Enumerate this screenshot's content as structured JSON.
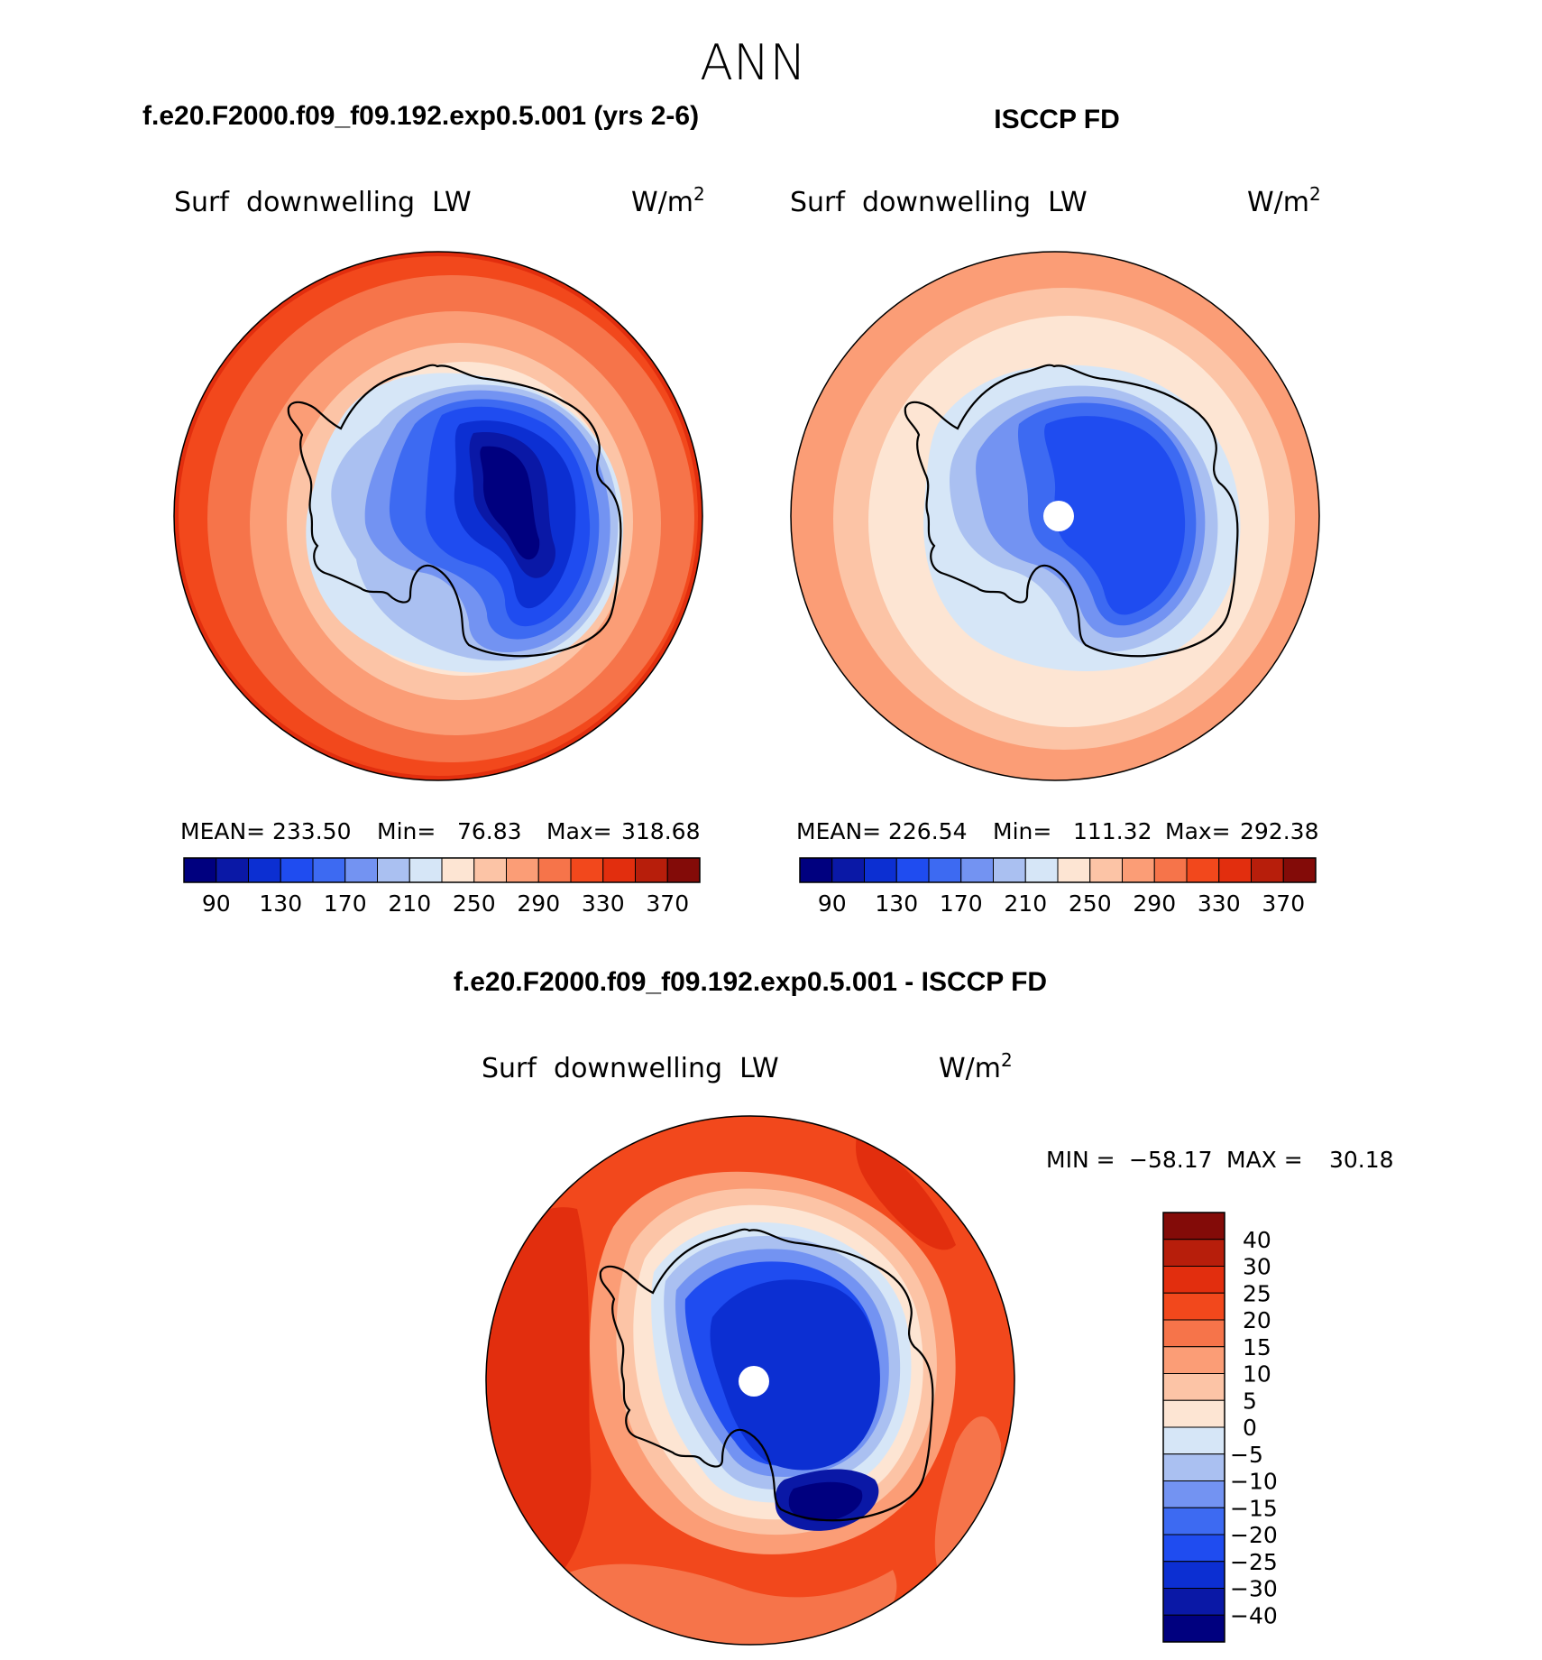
{
  "page_title": "ANN",
  "panel_titles": {
    "model": "f.e20.F2000.f09_f09.192.exp0.5.001 (yrs 2-6)",
    "obs": "ISCCP FD",
    "diff": "f.e20.F2000.f09_f09.192.exp0.5.001 - ISCCP FD"
  },
  "variable_label": "Surf  downwelling  LW",
  "units": "W/m",
  "units_exponent": "2",
  "colors": {
    "abs_scale": [
      "#00007f",
      "#0a18a6",
      "#0c2fd2",
      "#1f4cf0",
      "#3d6af2",
      "#7393f2",
      "#aac0f1",
      "#d6e6f7",
      "#fde5d3",
      "#fcc4a6",
      "#fb9d76",
      "#f6744a",
      "#f2481c",
      "#e22e0e",
      "#b71e0b",
      "#830b08"
    ],
    "diff_scale": [
      "#00007f",
      "#0a18a6",
      "#0c2fd2",
      "#1f4cf0",
      "#3d6af2",
      "#7393f2",
      "#aac0f1",
      "#d6e6f7",
      "#fde5d3",
      "#fcc4a6",
      "#fb9d76",
      "#f6744a",
      "#f2481c",
      "#e22e0e",
      "#b71e0b",
      "#830b08"
    ],
    "coastline": "#000000"
  },
  "chart_data": [
    {
      "type": "heatmap",
      "projection": "south-polar-stereographic",
      "title": "f.e20.F2000.f09_f09.192.exp0.5.001 (yrs 2-6)",
      "variable": "Surf  downwelling  LW",
      "stats": {
        "mean_label": "MEAN=",
        "mean": "233.50",
        "min_label": "Min=",
        "min": "76.83",
        "max_label": "Max=",
        "max": "318.68"
      },
      "contour_levels": [
        90,
        110,
        130,
        150,
        170,
        190,
        210,
        230,
        250,
        270,
        290,
        310,
        330,
        350,
        370
      ],
      "colorbar_ticks": [
        "90",
        "130",
        "170",
        "210",
        "250",
        "290",
        "330",
        "370"
      ]
    },
    {
      "type": "heatmap",
      "projection": "south-polar-stereographic",
      "title": "ISCCP FD",
      "variable": "Surf  downwelling  LW",
      "stats": {
        "mean_label": "MEAN=",
        "mean": "226.54",
        "min_label": "Min=",
        "min": "111.32",
        "max_label": "Max=",
        "max": "292.38"
      },
      "contour_levels": [
        90,
        110,
        130,
        150,
        170,
        190,
        210,
        230,
        250,
        270,
        290,
        310,
        330,
        350,
        370
      ],
      "colorbar_ticks": [
        "90",
        "130",
        "170",
        "210",
        "250",
        "290",
        "330",
        "370"
      ]
    },
    {
      "type": "heatmap",
      "projection": "south-polar-stereographic",
      "title": "f.e20.F2000.f09_f09.192.exp0.5.001 - ISCCP FD",
      "variable": "Surf  downwelling  LW",
      "stats": {
        "min_label": "MIN =",
        "min": "−58.17",
        "max_label": "MAX =",
        "max": "30.18"
      },
      "contour_levels": [
        -40,
        -30,
        -25,
        -20,
        -15,
        -10,
        -5,
        0,
        5,
        10,
        15,
        20,
        25,
        30,
        40
      ],
      "colorbar_ticks": [
        "40",
        "30",
        "25",
        "20",
        "15",
        "10",
        "5",
        "0",
        "−5",
        "−10",
        "−15",
        "−20",
        "−25",
        "−30",
        "−40"
      ]
    }
  ]
}
